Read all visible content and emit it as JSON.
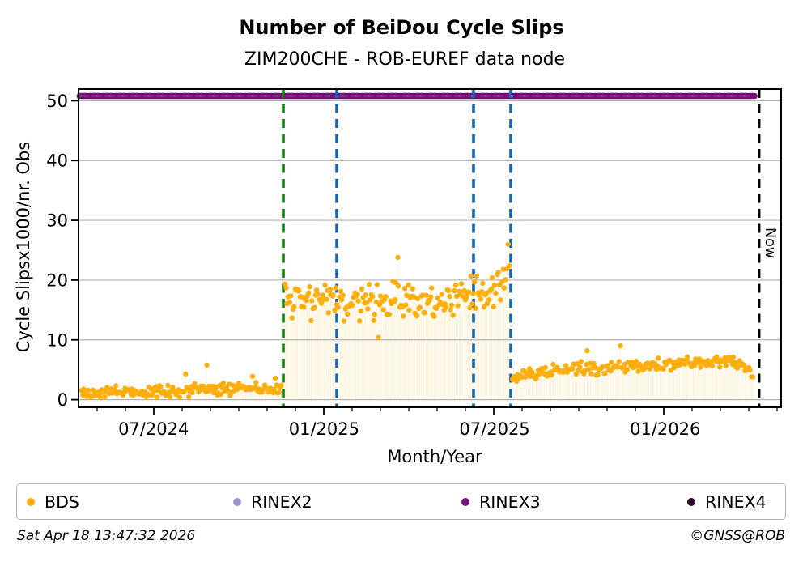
{
  "header": {
    "title": "Number of BeiDou Cycle Slips",
    "subtitle": "ZIM200CHE - ROB-EUREF data node"
  },
  "legend": {
    "items": [
      {
        "label": "BDS",
        "color": "#FFAE0C",
        "marker": "dot-icon"
      },
      {
        "label": "RINEX2",
        "color": "#9B96CC",
        "marker": "dot-icon"
      },
      {
        "label": "RINEX3",
        "color": "#7C0E7C",
        "marker": "dot-icon"
      },
      {
        "label": "RINEX4",
        "color": "#2B0A2B",
        "marker": "dot-icon"
      }
    ]
  },
  "footer": {
    "timestamp": "Sat Apr 18 13:47:32 2026",
    "credit": "©GNSS@ROB"
  },
  "chart_data": {
    "type": "scatter",
    "title": "Number of BeiDou Cycle Slips",
    "subtitle": "ZIM200CHE - ROB-EUREF data node",
    "xlabel": "Month/Year",
    "ylabel": "Cycle Slipsx1000/nr. Obs",
    "grid": "horizontal-gray",
    "x_domain": [
      2024.28,
      2026.34
    ],
    "ylim": [
      -1.3,
      52
    ],
    "yticks": [
      0,
      10,
      20,
      30,
      40,
      50
    ],
    "xticks": [
      {
        "label": "07/2024",
        "t": 2024.5
      },
      {
        "label": "01/2025",
        "t": 2025.0
      },
      {
        "label": "07/2025",
        "t": 2025.5
      },
      {
        "label": "01/2026",
        "t": 2026.0
      }
    ],
    "xticks_minor": "monthly",
    "now_label": "Now",
    "bds_color": "#FFAE0C",
    "bds_segments": [
      {
        "t0": 2024.287,
        "t1": 2024.876,
        "n": 170,
        "noise": 1.25,
        "min": 0.4,
        "max": 6.0,
        "keys": [
          [
            0,
            1.15
          ],
          [
            0.45,
            1.35
          ],
          [
            0.8,
            1.95
          ],
          [
            1,
            1.75
          ]
        ],
        "spikes": [
          [
            0.52,
            4.3
          ],
          [
            0.63,
            5.8
          ],
          [
            0.86,
            3.9
          ],
          [
            0.97,
            3.6
          ]
        ]
      },
      {
        "t0": 2024.883,
        "t1": 2025.544,
        "n": 190,
        "noise": 3.9,
        "min": 10.4,
        "max": 24.2,
        "keys": [
          [
            0,
            15.6
          ],
          [
            0.12,
            16.9
          ],
          [
            0.3,
            16.2
          ],
          [
            0.5,
            16.6
          ],
          [
            0.68,
            15.9
          ],
          [
            0.85,
            17.2
          ],
          [
            0.96,
            18.4
          ],
          [
            1,
            20.5
          ]
        ],
        "spikes": [
          [
            0.995,
            26
          ],
          [
            0.5,
            23.8
          ],
          [
            0.42,
            10.4
          ]
        ]
      },
      {
        "t0": 2025.551,
        "t1": 2026.258,
        "n": 190,
        "noise": 1.35,
        "min": 2.9,
        "max": 8.3,
        "keys": [
          [
            0,
            3.9
          ],
          [
            0.2,
            5.0
          ],
          [
            0.45,
            5.6
          ],
          [
            0.7,
            6.1
          ],
          [
            0.9,
            6.5
          ],
          [
            0.955,
            6.2
          ],
          [
            0.985,
            4.6
          ],
          [
            1,
            3.8
          ]
        ],
        "spikes": [
          [
            0.45,
            9.0
          ],
          [
            0.31,
            8.2
          ]
        ]
      }
    ],
    "rinex3_line": {
      "t0": 2024.283,
      "t1": 2026.262,
      "value": 50.8,
      "color": "#780A78"
    },
    "rinex2_line": {
      "t0": 2024.283,
      "t1": 2026.262,
      "value": 50.8,
      "color": "#B7AEDC"
    },
    "events": [
      {
        "t": 2024.8805,
        "color": "#157F15",
        "style": "dashed",
        "width": 3.6
      },
      {
        "t": 2025.0371,
        "color": "#1666B2",
        "style": "dashed",
        "width": 3.6
      },
      {
        "t": 2025.4381,
        "color": "#1666B2",
        "style": "dashed",
        "width": 3.6
      },
      {
        "t": 2025.5473,
        "color": "#1666B2",
        "style": "dashed",
        "width": 3.6
      },
      {
        "t": 2026.276,
        "color": "#000000",
        "style": "dashed",
        "width": 2.8,
        "label": "Now"
      }
    ]
  }
}
